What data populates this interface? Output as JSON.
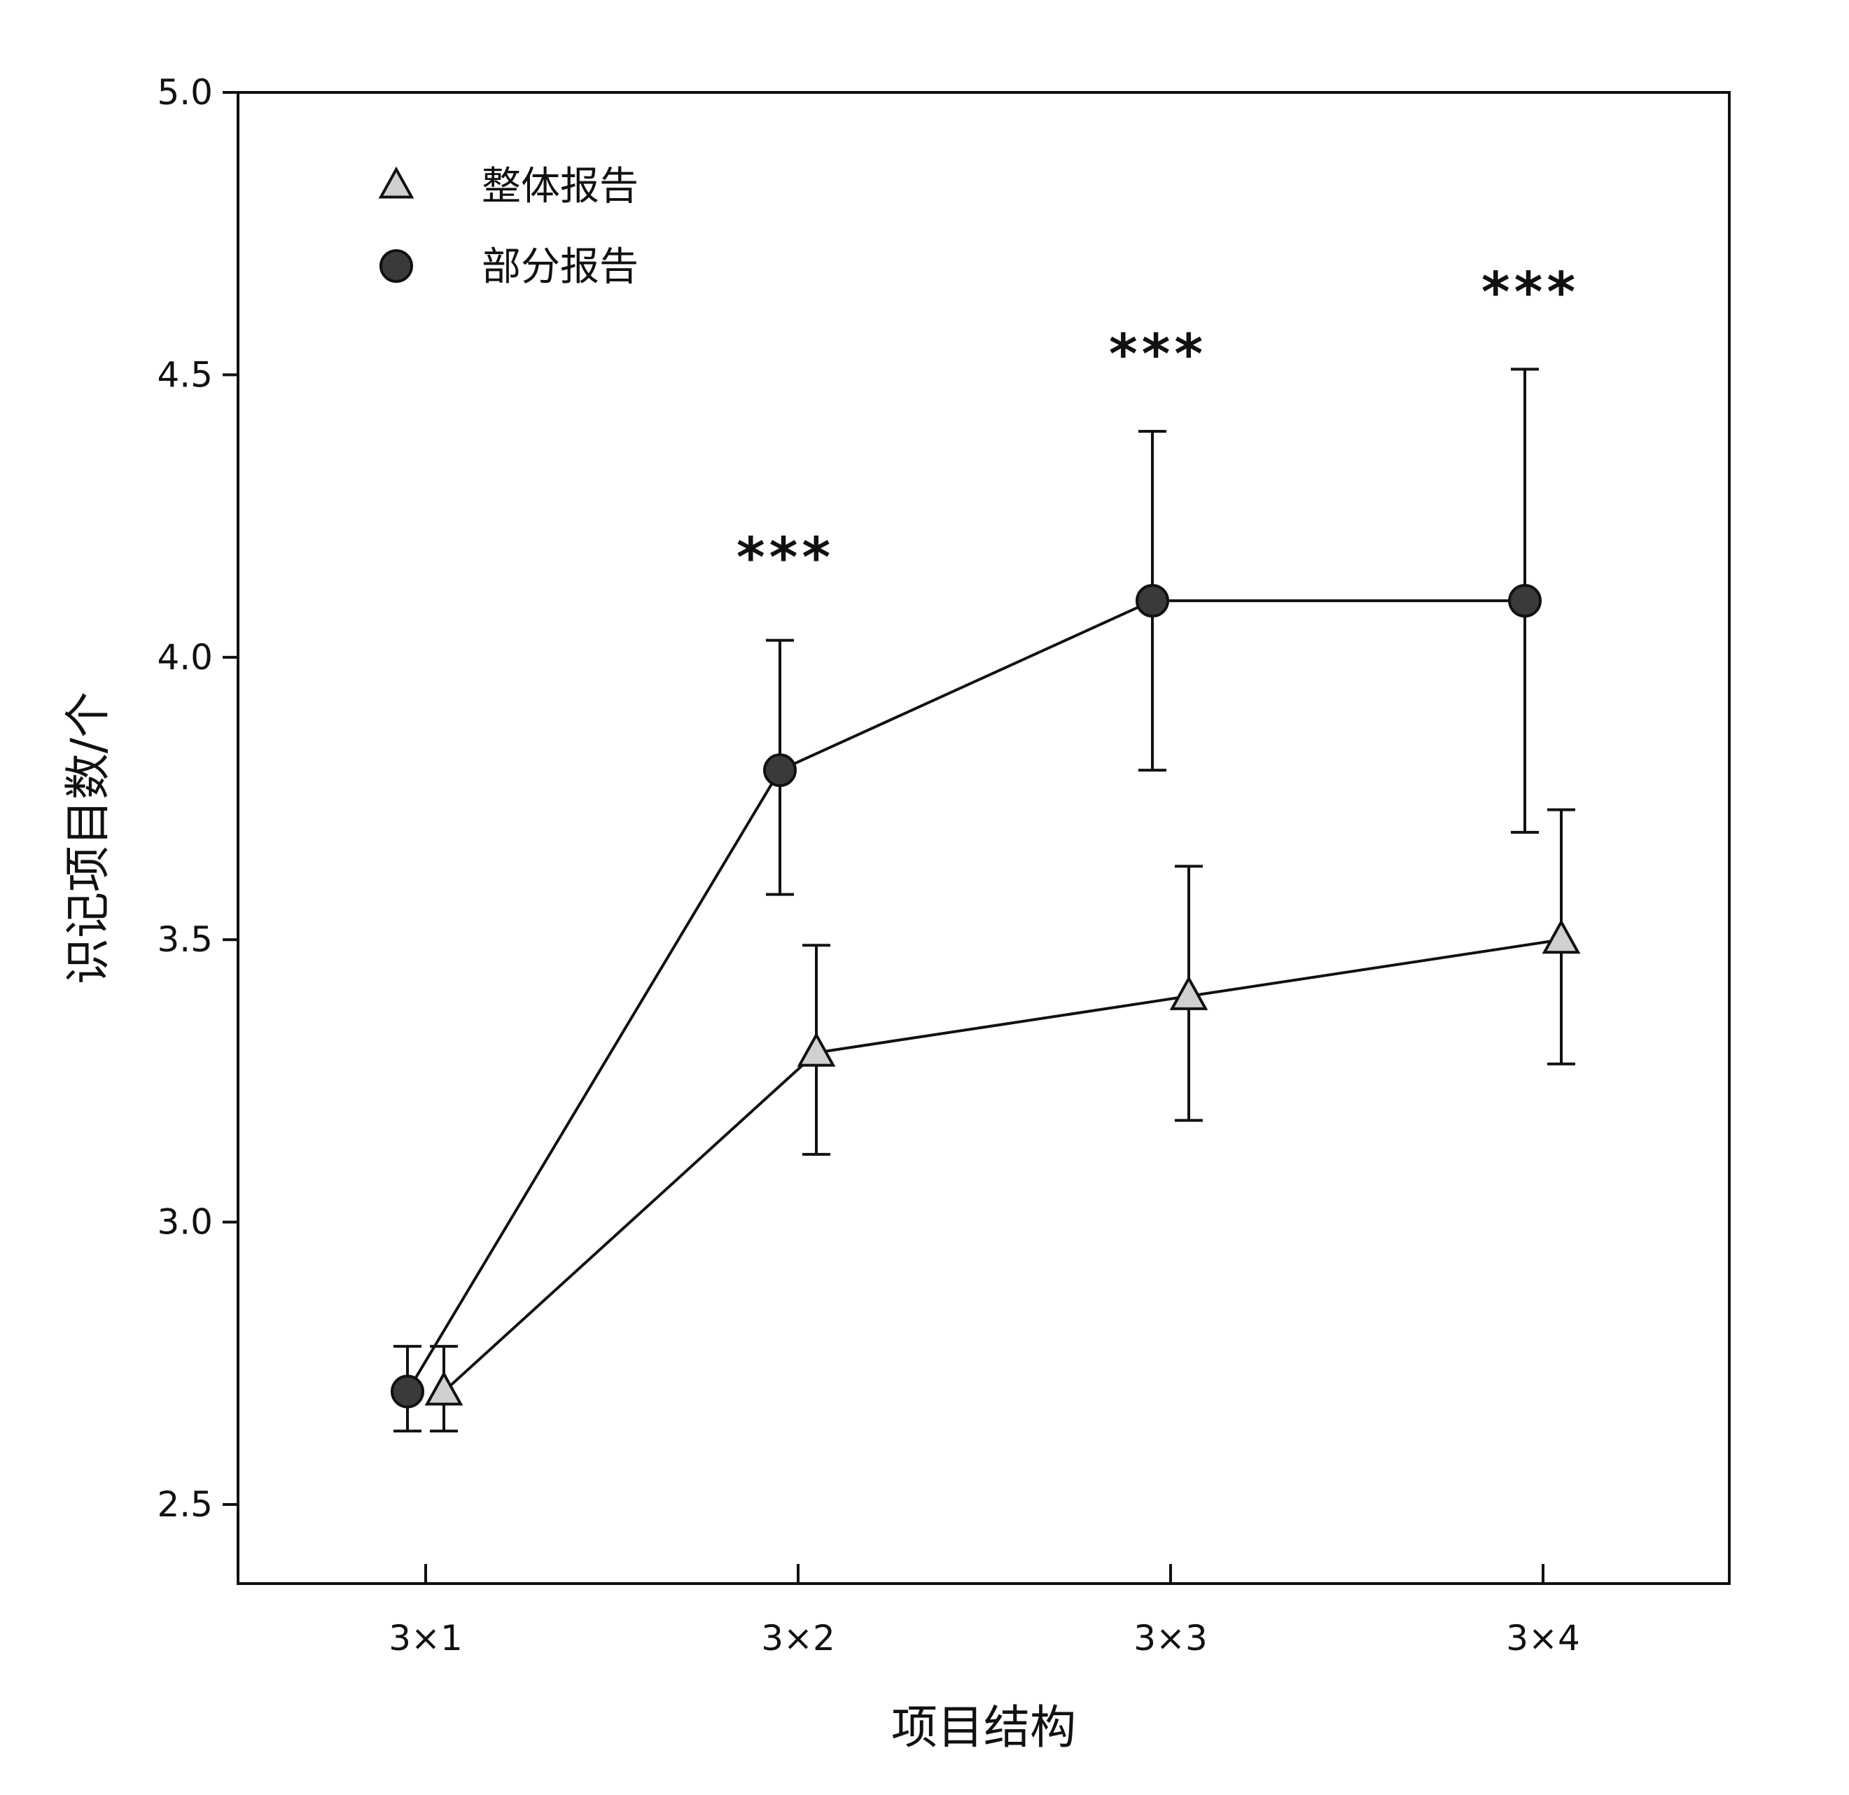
{
  "chart_data": {
    "type": "line",
    "xlabel": "项目结构",
    "ylabel": "识记项目数/个",
    "categories": [
      "3×1",
      "3×2",
      "3×3",
      "3×4"
    ],
    "ylim": [
      2.36,
      5.0
    ],
    "yticks": [
      "2.5",
      "3.0",
      "3.5",
      "4.0",
      "4.5",
      "5.0"
    ],
    "ytick_values": [
      2.5,
      3.0,
      3.5,
      4.0,
      4.5,
      5.0
    ],
    "grid": false,
    "legend_position": "top-left",
    "series": [
      {
        "name": "整体报告",
        "marker": "triangle",
        "color": "#d0d0d0",
        "values": [
          2.7,
          3.3,
          3.4,
          3.5
        ],
        "err_low": [
          2.63,
          3.12,
          3.18,
          3.28
        ],
        "err_high": [
          2.78,
          3.49,
          3.63,
          3.73
        ]
      },
      {
        "name": "部分报告",
        "marker": "circle",
        "color": "#3a3a3a",
        "values": [
          2.7,
          3.8,
          4.1,
          4.1
        ],
        "err_low": [
          2.63,
          3.58,
          3.8,
          3.69
        ],
        "err_high": [
          2.78,
          4.03,
          4.4,
          4.51
        ]
      }
    ],
    "annotations": [
      {
        "category": "3×2",
        "y": 4.18,
        "text": "***"
      },
      {
        "category": "3×3",
        "y": 4.54,
        "text": "***"
      },
      {
        "category": "3×4",
        "y": 4.65,
        "text": "***"
      }
    ]
  }
}
